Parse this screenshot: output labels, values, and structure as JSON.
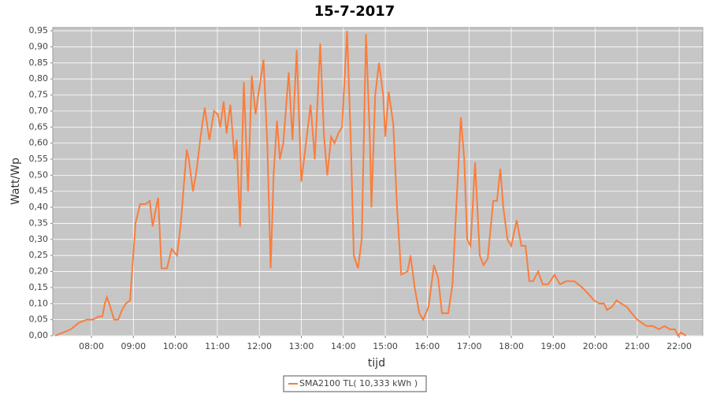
{
  "chart_data": {
    "type": "line",
    "title": "15-7-2017",
    "x_label": "tijd",
    "y_label": "Watt/Wp",
    "x": [
      7.14,
      7.33,
      7.51,
      7.7,
      7.89,
      8.04,
      8.17,
      8.26,
      8.32,
      8.37,
      8.45,
      8.54,
      8.64,
      8.73,
      8.82,
      8.92,
      8.97,
      9.05,
      9.16,
      9.29,
      9.39,
      9.46,
      9.54,
      9.59,
      9.67,
      9.8,
      9.91,
      10.04,
      10.13,
      10.27,
      10.32,
      10.42,
      10.51,
      10.6,
      10.7,
      10.81,
      10.92,
      11.01,
      11.07,
      11.15,
      11.22,
      11.31,
      11.41,
      11.46,
      11.54,
      11.63,
      11.73,
      11.82,
      11.91,
      12.01,
      12.1,
      12.19,
      12.27,
      12.34,
      12.42,
      12.49,
      12.57,
      12.7,
      12.79,
      12.89,
      13.0,
      13.13,
      13.22,
      13.32,
      13.45,
      13.54,
      13.62,
      13.71,
      13.79,
      13.88,
      13.97,
      14.09,
      14.18,
      14.25,
      14.35,
      14.44,
      14.54,
      14.63,
      14.67,
      14.76,
      14.85,
      14.95,
      15.0,
      15.08,
      15.19,
      15.28,
      15.38,
      15.53,
      15.6,
      15.7,
      15.81,
      15.9,
      16.03,
      16.16,
      16.26,
      16.35,
      16.5,
      16.6,
      16.69,
      16.8,
      16.88,
      16.95,
      17.03,
      17.14,
      17.25,
      17.34,
      17.44,
      17.57,
      17.66,
      17.74,
      17.81,
      17.91,
      18.0,
      18.13,
      18.24,
      18.34,
      18.43,
      18.52,
      18.64,
      18.75,
      18.88,
      19.03,
      19.16,
      19.31,
      19.5,
      19.69,
      19.84,
      19.97,
      20.1,
      20.21,
      20.28,
      20.4,
      20.51,
      20.62,
      20.75,
      20.87,
      21.0,
      21.11,
      21.22,
      21.37,
      21.52,
      21.65,
      21.78,
      21.9,
      21.97,
      22.04,
      22.16
    ],
    "series": [
      {
        "name": "SMA2100 TL( 10,333 kWh )",
        "color": "#fb7d3b",
        "values": [
          0.0,
          0.01,
          0.02,
          0.04,
          0.05,
          0.05,
          0.06,
          0.06,
          0.1,
          0.12,
          0.09,
          0.05,
          0.05,
          0.08,
          0.1,
          0.11,
          0.2,
          0.35,
          0.41,
          0.41,
          0.42,
          0.34,
          0.4,
          0.43,
          0.21,
          0.21,
          0.27,
          0.25,
          0.35,
          0.58,
          0.55,
          0.45,
          0.52,
          0.62,
          0.71,
          0.61,
          0.7,
          0.69,
          0.65,
          0.73,
          0.63,
          0.72,
          0.55,
          0.61,
          0.34,
          0.79,
          0.45,
          0.81,
          0.69,
          0.78,
          0.86,
          0.6,
          0.21,
          0.5,
          0.67,
          0.55,
          0.6,
          0.82,
          0.61,
          0.89,
          0.48,
          0.62,
          0.72,
          0.55,
          0.91,
          0.62,
          0.5,
          0.62,
          0.6,
          0.63,
          0.65,
          0.95,
          0.6,
          0.25,
          0.21,
          0.3,
          0.94,
          0.62,
          0.4,
          0.75,
          0.85,
          0.75,
          0.62,
          0.76,
          0.66,
          0.4,
          0.19,
          0.2,
          0.25,
          0.15,
          0.07,
          0.05,
          0.09,
          0.22,
          0.18,
          0.07,
          0.07,
          0.16,
          0.4,
          0.68,
          0.55,
          0.3,
          0.28,
          0.54,
          0.25,
          0.22,
          0.24,
          0.42,
          0.42,
          0.52,
          0.4,
          0.3,
          0.28,
          0.36,
          0.28,
          0.28,
          0.17,
          0.17,
          0.2,
          0.16,
          0.16,
          0.19,
          0.16,
          0.17,
          0.17,
          0.15,
          0.13,
          0.11,
          0.1,
          0.1,
          0.08,
          0.09,
          0.11,
          0.1,
          0.09,
          0.07,
          0.05,
          0.04,
          0.03,
          0.03,
          0.02,
          0.03,
          0.02,
          0.02,
          0.0,
          0.01,
          0.0
        ]
      }
    ],
    "xlim": [
      7.08,
      22.56
    ],
    "xticks": [
      {
        "value": 8,
        "label": "08:00"
      },
      {
        "value": 9,
        "label": "09:00"
      },
      {
        "value": 10,
        "label": "10:00"
      },
      {
        "value": 11,
        "label": "11:00"
      },
      {
        "value": 12,
        "label": "12:00"
      },
      {
        "value": 13,
        "label": "13:00"
      },
      {
        "value": 14,
        "label": "14:00"
      },
      {
        "value": 15,
        "label": "15:00"
      },
      {
        "value": 16,
        "label": "16:00"
      },
      {
        "value": 17,
        "label": "17:00"
      },
      {
        "value": 18,
        "label": "18:00"
      },
      {
        "value": 19,
        "label": "19:00"
      },
      {
        "value": 20,
        "label": "20:00"
      },
      {
        "value": 21,
        "label": "21:00"
      },
      {
        "value": 22,
        "label": "22:00"
      }
    ],
    "ylim": [
      0,
      0.96
    ],
    "yticks": [
      {
        "value": 0,
        "label": "0,00"
      },
      {
        "value": 0.05,
        "label": "0,05"
      },
      {
        "value": 0.1,
        "label": "0,10"
      },
      {
        "value": 0.15,
        "label": "0,15"
      },
      {
        "value": 0.2,
        "label": "0,20"
      },
      {
        "value": 0.25,
        "label": "0,25"
      },
      {
        "value": 0.3,
        "label": "0,30"
      },
      {
        "value": 0.35,
        "label": "0,35"
      },
      {
        "value": 0.4,
        "label": "0,40"
      },
      {
        "value": 0.45,
        "label": "0,45"
      },
      {
        "value": 0.5,
        "label": "0,50"
      },
      {
        "value": 0.55,
        "label": "0,55"
      },
      {
        "value": 0.6,
        "label": "0,60"
      },
      {
        "value": 0.65,
        "label": "0,65"
      },
      {
        "value": 0.7,
        "label": "0,70"
      },
      {
        "value": 0.75,
        "label": "0,75"
      },
      {
        "value": 0.8,
        "label": "0,80"
      },
      {
        "value": 0.85,
        "label": "0,85"
      },
      {
        "value": 0.9,
        "label": "0,90"
      },
      {
        "value": 0.95,
        "label": "0,95"
      }
    ],
    "grid": true
  }
}
